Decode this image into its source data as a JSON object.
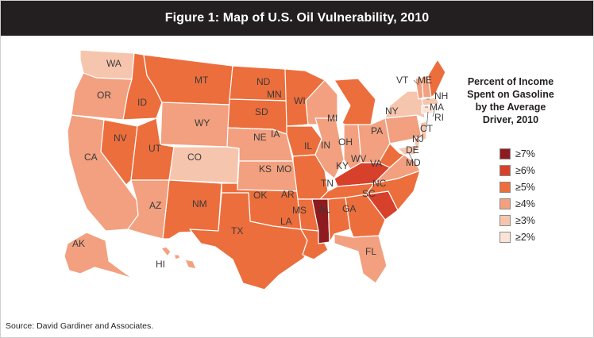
{
  "title": "Figure 1: Map of U.S. Oil Vulnerability, 2010",
  "legend": {
    "title": "Percent of Income Spent on Gasoline by the Average Driver, 2010",
    "title_lines": [
      "Percent of Income",
      "Spent on Gasoline",
      "by the Average",
      "Driver, 2010"
    ],
    "items": [
      {
        "label": "≥7%",
        "color": "#8e1b1f"
      },
      {
        "label": "≥6%",
        "color": "#d7402b"
      },
      {
        "label": "≥5%",
        "color": "#ec6e3c"
      },
      {
        "label": "≥4%",
        "color": "#f2a07f"
      },
      {
        "label": "≥3%",
        "color": "#f6c5ae"
      },
      {
        "label": "≥2%",
        "color": "#fbe3d6"
      }
    ]
  },
  "states": {
    "WA": {
      "tier": 4
    },
    "OR": {
      "tier": 3
    },
    "CA": {
      "tier": 3
    },
    "NV": {
      "tier": 2
    },
    "ID": {
      "tier": 2
    },
    "MT": {
      "tier": 2
    },
    "WY": {
      "tier": 3
    },
    "UT": {
      "tier": 2
    },
    "AZ": {
      "tier": 3
    },
    "CO": {
      "tier": 4
    },
    "NM": {
      "tier": 2
    },
    "ND": {
      "tier": 2
    },
    "SD": {
      "tier": 2
    },
    "NE": {
      "tier": 3
    },
    "KS": {
      "tier": 3
    },
    "OK": {
      "tier": 2
    },
    "TX": {
      "tier": 2
    },
    "MN": {
      "tier": 2
    },
    "IA": {
      "tier": 2
    },
    "MO": {
      "tier": 2
    },
    "AR": {
      "tier": 2
    },
    "LA": {
      "tier": 2
    },
    "WI": {
      "tier": 3
    },
    "IL": {
      "tier": 3
    },
    "MI": {
      "tier": 2
    },
    "IN": {
      "tier": 3
    },
    "OH": {
      "tier": 3
    },
    "KY": {
      "tier": 1
    },
    "TN": {
      "tier": 2
    },
    "MS": {
      "tier": 0
    },
    "AL": {
      "tier": 2
    },
    "GA": {
      "tier": 2
    },
    "FL": {
      "tier": 3
    },
    "SC": {
      "tier": 1
    },
    "NC": {
      "tier": 2
    },
    "VA": {
      "tier": 3
    },
    "WV": {
      "tier": 2
    },
    "PA": {
      "tier": 3
    },
    "NY": {
      "tier": 4
    },
    "VT": {
      "tier": 3
    },
    "NH": {
      "tier": 3
    },
    "ME": {
      "tier": 2
    },
    "MA": {
      "tier": 4
    },
    "RI": {
      "tier": 4
    },
    "CT": {
      "tier": 5
    },
    "NJ": {
      "tier": 4
    },
    "DE": {
      "tier": 4
    },
    "MD": {
      "tier": 4
    },
    "AK": {
      "tier": 3
    },
    "HI": {
      "tier": 3
    }
  },
  "source": "Source: David Gardiner and Associates."
}
